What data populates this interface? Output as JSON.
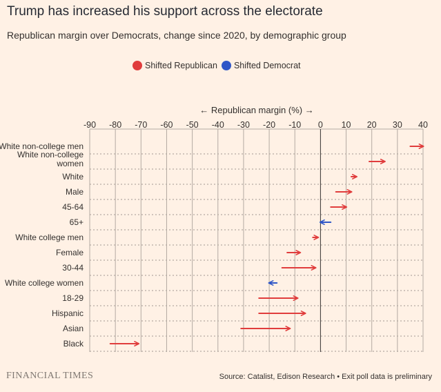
{
  "header": {
    "title": "Trump has increased his support across the electorate",
    "subtitle": "Republican margin over Democrats, change since 2020, by demographic group"
  },
  "legend": {
    "items": [
      {
        "label": "Shifted Republican",
        "color": "#e03c3c"
      },
      {
        "label": "Shifted Democrat",
        "color": "#2f56c7"
      }
    ]
  },
  "chart_data": {
    "type": "arrow",
    "title": "Trump has increased his support across the electorate",
    "xlabel": "← Republican margin (%) →",
    "xlim": [
      -90,
      40
    ],
    "xticks": [
      -90,
      -80,
      -70,
      -60,
      -50,
      -40,
      -30,
      -20,
      -10,
      0,
      10,
      20,
      30,
      40
    ],
    "series_colors": {
      "republican": "#e03c3c",
      "democrat": "#2f56c7"
    },
    "rows": [
      {
        "label": "White non-college men",
        "from": 35,
        "to": 40
      },
      {
        "label": "White non-college women",
        "from": 19,
        "to": 25
      },
      {
        "label": "White",
        "from": 12,
        "to": 14
      },
      {
        "label": "Male",
        "from": 6,
        "to": 12
      },
      {
        "label": "45-64",
        "from": 4,
        "to": 10
      },
      {
        "label": "65+",
        "from": 4,
        "to": 0
      },
      {
        "label": "White college men",
        "from": -3,
        "to": -1
      },
      {
        "label": "Female",
        "from": -13,
        "to": -8
      },
      {
        "label": "30-44",
        "from": -15,
        "to": -2
      },
      {
        "label": "White college women",
        "from": -17,
        "to": -20
      },
      {
        "label": "18-29",
        "from": -24,
        "to": -9
      },
      {
        "label": "Hispanic",
        "from": -24,
        "to": -6
      },
      {
        "label": "Asian",
        "from": -31,
        "to": -12
      },
      {
        "label": "Black",
        "from": -82,
        "to": -71
      }
    ]
  },
  "footer": {
    "logo": "FINANCIAL TIMES",
    "source": "Source: Catalist, Edison Research • Exit poll data is preliminary"
  }
}
